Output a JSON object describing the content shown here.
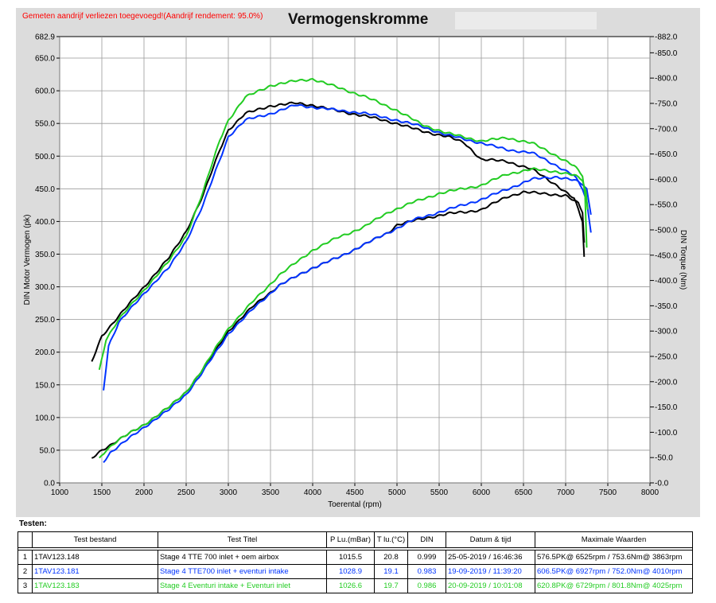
{
  "header": {
    "note": "Gemeten aandrijf verliezen toegevoegd!(Aandrijf rendement: 95.0%)",
    "title": "Vermogenskromme"
  },
  "chart_data": {
    "type": "line",
    "title": "Vermogenskromme",
    "xlabel": "Toerental (rpm)",
    "ylabel": "DIN Motor Vermogen (pk)",
    "y2label": "DIN Torque (Nm)",
    "xlim": [
      1000,
      8000
    ],
    "ylim": [
      0,
      682.9
    ],
    "y2lim": [
      0,
      882.0
    ],
    "grid": true,
    "x_ticks": [
      "1000",
      "1500",
      "2000",
      "2500",
      "3000",
      "3500",
      "4000",
      "4500",
      "5000",
      "5500",
      "6000",
      "6500",
      "7000",
      "7500",
      "8000"
    ],
    "y_ticks": [
      "0.0",
      "50.0",
      "100.0",
      "150.0",
      "200.0",
      "250.0",
      "300.0",
      "350.0",
      "400.0",
      "450.0",
      "500.0",
      "550.0",
      "600.0",
      "650.0",
      "682.9"
    ],
    "y2_ticks": [
      "0.0",
      "50.0",
      "100.0",
      "150.0",
      "200.0",
      "250.0",
      "300.0",
      "350.0",
      "400.0",
      "450.0",
      "500.0",
      "550.0",
      "600.0",
      "650.0",
      "700.0",
      "750.0",
      "800.0",
      "850.0",
      "882.0"
    ],
    "series": [
      {
        "name": "1TAV123.148",
        "color": "#000000",
        "power": [
          [
            1380,
            185
          ],
          [
            1500,
            225
          ],
          [
            1700,
            255
          ],
          [
            2000,
            300
          ],
          [
            2300,
            345
          ],
          [
            2500,
            385
          ],
          [
            2700,
            440
          ],
          [
            2900,
            510
          ],
          [
            3000,
            540
          ],
          [
            3200,
            565
          ],
          [
            3500,
            577
          ],
          [
            3800,
            581
          ],
          [
            4000,
            578
          ],
          [
            4300,
            569
          ],
          [
            4600,
            562
          ],
          [
            5000,
            550
          ],
          [
            5300,
            538
          ],
          [
            5600,
            530
          ],
          [
            5800,
            520
          ],
          [
            6000,
            495
          ],
          [
            6300,
            492
          ],
          [
            6600,
            480
          ],
          [
            6900,
            455
          ],
          [
            7100,
            435
          ],
          [
            7200,
            400
          ],
          [
            7220,
            346
          ]
        ],
        "torque": [
          [
            1380,
            48
          ],
          [
            1500,
            65
          ],
          [
            1700,
            85
          ],
          [
            2000,
            115
          ],
          [
            2300,
            150
          ],
          [
            2500,
            180
          ],
          [
            2700,
            225
          ],
          [
            2900,
            275
          ],
          [
            3000,
            300
          ],
          [
            3300,
            350
          ],
          [
            3600,
            390
          ],
          [
            4000,
            425
          ],
          [
            4300,
            445
          ],
          [
            4600,
            470
          ],
          [
            4900,
            495
          ],
          [
            5000,
            510
          ],
          [
            5300,
            522
          ],
          [
            5600,
            532
          ],
          [
            5800,
            535
          ],
          [
            6000,
            540
          ],
          [
            6300,
            565
          ],
          [
            6500,
            575
          ],
          [
            6700,
            572
          ],
          [
            7000,
            568
          ],
          [
            7150,
            552
          ],
          [
            7200,
            535
          ],
          [
            7220,
            475
          ]
        ]
      },
      {
        "name": "1TAV123.181",
        "color": "#0033ff",
        "power": [
          [
            1520,
            143
          ],
          [
            1580,
            210
          ],
          [
            1700,
            245
          ],
          [
            2000,
            290
          ],
          [
            2300,
            330
          ],
          [
            2500,
            370
          ],
          [
            2700,
            425
          ],
          [
            2900,
            495
          ],
          [
            3000,
            530
          ],
          [
            3200,
            555
          ],
          [
            3500,
            565
          ],
          [
            3800,
            578
          ],
          [
            4000,
            575
          ],
          [
            4300,
            570
          ],
          [
            4600,
            566
          ],
          [
            5000,
            555
          ],
          [
            5300,
            545
          ],
          [
            5600,
            532
          ],
          [
            6000,
            520
          ],
          [
            6300,
            510
          ],
          [
            6600,
            505
          ],
          [
            6900,
            485
          ],
          [
            7100,
            470
          ],
          [
            7200,
            450
          ],
          [
            7250,
            430
          ],
          [
            7300,
            383
          ]
        ],
        "torque": [
          [
            1520,
            42
          ],
          [
            1600,
            60
          ],
          [
            1800,
            85
          ],
          [
            2000,
            110
          ],
          [
            2300,
            145
          ],
          [
            2500,
            175
          ],
          [
            2700,
            220
          ],
          [
            2900,
            270
          ],
          [
            3000,
            295
          ],
          [
            3300,
            345
          ],
          [
            3600,
            390
          ],
          [
            4000,
            425
          ],
          [
            4300,
            445
          ],
          [
            4600,
            470
          ],
          [
            4900,
            495
          ],
          [
            5200,
            520
          ],
          [
            5500,
            535
          ],
          [
            5800,
            550
          ],
          [
            6000,
            560
          ],
          [
            6300,
            580
          ],
          [
            6600,
            600
          ],
          [
            6900,
            605
          ],
          [
            7100,
            598
          ],
          [
            7200,
            590
          ],
          [
            7250,
            580
          ],
          [
            7300,
            530
          ]
        ]
      },
      {
        "name": "1TAV123.183",
        "color": "#22cc22",
        "power": [
          [
            1470,
            172
          ],
          [
            1550,
            220
          ],
          [
            1700,
            250
          ],
          [
            2000,
            295
          ],
          [
            2300,
            340
          ],
          [
            2500,
            378
          ],
          [
            2700,
            445
          ],
          [
            2900,
            525
          ],
          [
            3000,
            555
          ],
          [
            3200,
            590
          ],
          [
            3500,
            608
          ],
          [
            3800,
            615
          ],
          [
            4000,
            618
          ],
          [
            4300,
            605
          ],
          [
            4600,
            592
          ],
          [
            5000,
            570
          ],
          [
            5300,
            548
          ],
          [
            5600,
            535
          ],
          [
            6000,
            523
          ],
          [
            6300,
            528
          ],
          [
            6600,
            520
          ],
          [
            6900,
            500
          ],
          [
            7100,
            485
          ],
          [
            7200,
            470
          ],
          [
            7230,
            440
          ],
          [
            7250,
            360
          ]
        ],
        "torque": [
          [
            1470,
            48
          ],
          [
            1550,
            65
          ],
          [
            1700,
            85
          ],
          [
            2000,
            115
          ],
          [
            2300,
            150
          ],
          [
            2500,
            180
          ],
          [
            2700,
            225
          ],
          [
            2900,
            280
          ],
          [
            3000,
            305
          ],
          [
            3300,
            360
          ],
          [
            3600,
            410
          ],
          [
            4000,
            460
          ],
          [
            4300,
            485
          ],
          [
            4600,
            505
          ],
          [
            4900,
            535
          ],
          [
            5200,
            555
          ],
          [
            5500,
            572
          ],
          [
            5800,
            582
          ],
          [
            6000,
            588
          ],
          [
            6300,
            610
          ],
          [
            6600,
            620
          ],
          [
            6900,
            615
          ],
          [
            7100,
            608
          ],
          [
            7200,
            598
          ],
          [
            7240,
            575
          ],
          [
            7260,
            540
          ]
        ]
      }
    ]
  },
  "tests": {
    "label": "Testen:",
    "columns": [
      "Test bestand",
      "Test Titel",
      "P Lu.(mBar)",
      "T lu.(°C)",
      "DIN",
      "Datum & tijd",
      "Maximale Waarden"
    ],
    "rows": [
      {
        "index": "1",
        "file": "1TAV123.148",
        "title": "Stage 4 TTE 700  inlet + oem airbox",
        "pressure": "1015.5",
        "temp": "20.8",
        "din": "0.999",
        "datetime": "25-05-2019 / 16:46:36",
        "max": "576.5PK@ 6525rpm / 753.6Nm@ 3863rpm",
        "color": "#000000"
      },
      {
        "index": "2",
        "file": "1TAV123.181",
        "title": "Stage 4 TTE700 inlet + eventuri intake",
        "pressure": "1028.9",
        "temp": "19.1",
        "din": "0.983",
        "datetime": "19-09-2019 / 11:39:20",
        "max": "606.5PK@ 6927rpm / 752.0Nm@ 4010rpm",
        "color": "#0033ff"
      },
      {
        "index": "3",
        "file": "1TAV123.183",
        "title": "Stage 4 Eventuri intake + Eventuri inlet",
        "pressure": "1026.6",
        "temp": "19.7",
        "din": "0.986",
        "datetime": "20-09-2019 / 10:01:08",
        "max": "620.8PK@ 6729rpm / 801.8Nm@ 4025rpm",
        "color": "#22cc22"
      }
    ]
  }
}
